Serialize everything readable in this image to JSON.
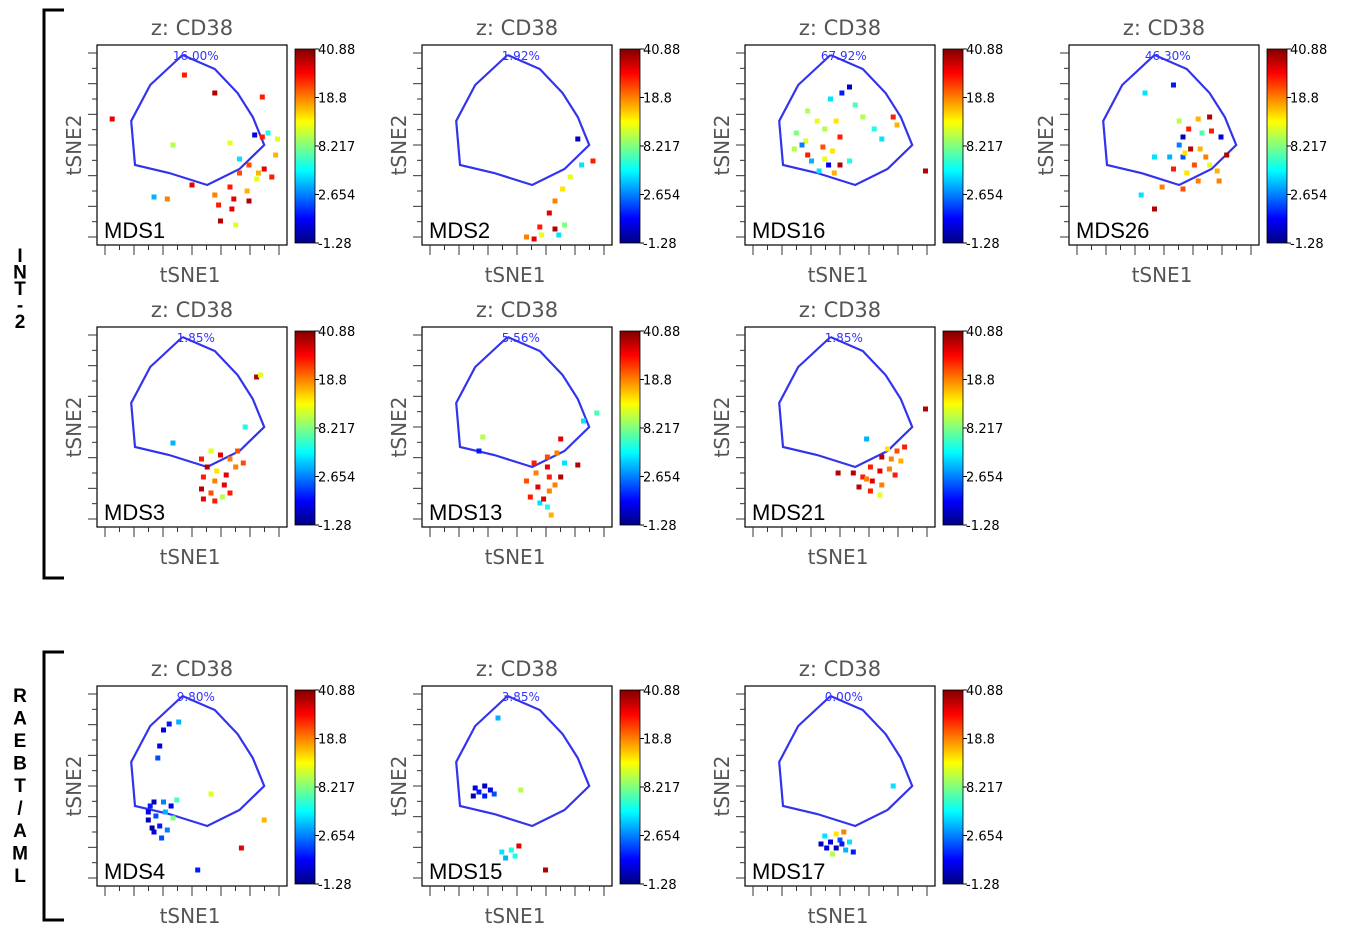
{
  "groups": [
    {
      "label_chars": [
        "I",
        "N",
        "T",
        "-",
        "2"
      ],
      "label": "INT-2"
    },
    {
      "label_chars": [
        "R",
        "A",
        "E",
        "B",
        "T",
        "/",
        "A",
        "M",
        "L"
      ],
      "label": "RAEBT/AML"
    }
  ],
  "colorbar": {
    "ticks": [
      "40.88",
      "18.8",
      "8.217",
      "2.654",
      "-1.28"
    ],
    "stops": [
      "#00007f",
      "#0000ff",
      "#0080ff",
      "#00ffff",
      "#80ff80",
      "#ffff00",
      "#ff8000",
      "#ff0000",
      "#7f0000"
    ]
  },
  "chart_data": [
    {
      "type": "scatter",
      "title": "z: CD38",
      "xlabel": "tSNE1",
      "ylabel": "tSNE2",
      "sample": "MDS1",
      "gate_percent": "16.00%",
      "group": "INT-2",
      "points": [
        [
          0.46,
          0.15,
          0.85
        ],
        [
          0.62,
          0.24,
          0.95
        ],
        [
          0.87,
          0.26,
          0.85
        ],
        [
          0.08,
          0.37,
          0.9
        ],
        [
          0.83,
          0.45,
          0.1
        ],
        [
          0.87,
          0.46,
          0.85
        ],
        [
          0.9,
          0.44,
          0.4
        ],
        [
          0.95,
          0.47,
          0.6
        ],
        [
          0.4,
          0.5,
          0.55
        ],
        [
          0.7,
          0.49,
          0.6
        ],
        [
          0.94,
          0.55,
          0.7
        ],
        [
          0.8,
          0.6,
          0.8
        ],
        [
          0.88,
          0.62,
          0.9
        ],
        [
          0.75,
          0.64,
          0.8
        ],
        [
          0.84,
          0.67,
          0.6
        ],
        [
          0.92,
          0.66,
          0.85
        ],
        [
          0.5,
          0.7,
          0.9
        ],
        [
          0.7,
          0.71,
          0.85
        ],
        [
          0.79,
          0.73,
          0.7
        ],
        [
          0.62,
          0.75,
          0.75
        ],
        [
          0.72,
          0.77,
          0.9
        ],
        [
          0.3,
          0.76,
          0.3
        ],
        [
          0.37,
          0.77,
          0.75
        ],
        [
          0.64,
          0.8,
          0.85
        ],
        [
          0.71,
          0.82,
          0.9
        ],
        [
          0.8,
          0.78,
          0.95
        ],
        [
          0.65,
          0.88,
          0.95
        ],
        [
          0.73,
          0.9,
          0.6
        ],
        [
          0.85,
          0.64,
          0.7
        ],
        [
          0.75,
          0.57,
          0.35
        ]
      ]
    },
    {
      "type": "scatter",
      "title": "z: CD38",
      "xlabel": "tSNE1",
      "ylabel": "tSNE2",
      "sample": "MDS2",
      "gate_percent": "1.92%",
      "group": "INT-2",
      "points": [
        [
          0.82,
          0.47,
          0.05
        ],
        [
          0.84,
          0.6,
          0.35
        ],
        [
          0.9,
          0.58,
          0.85
        ],
        [
          0.78,
          0.66,
          0.6
        ],
        [
          0.74,
          0.72,
          0.65
        ],
        [
          0.7,
          0.78,
          0.75
        ],
        [
          0.67,
          0.84,
          0.9
        ],
        [
          0.62,
          0.91,
          0.85
        ],
        [
          0.7,
          0.92,
          0.95
        ],
        [
          0.75,
          0.9,
          0.5
        ],
        [
          0.55,
          0.96,
          0.75
        ],
        [
          0.63,
          0.95,
          0.6
        ],
        [
          0.72,
          0.95,
          0.35
        ],
        [
          0.59,
          0.97,
          0.9
        ]
      ]
    },
    {
      "type": "scatter",
      "title": "z: CD38",
      "xlabel": "tSNE1",
      "ylabel": "tSNE2",
      "sample": "MDS16",
      "gate_percent": "67.92%",
      "group": "INT-2",
      "points": [
        [
          0.55,
          0.21,
          0.05
        ],
        [
          0.51,
          0.24,
          0.15
        ],
        [
          0.45,
          0.27,
          0.35
        ],
        [
          0.58,
          0.3,
          0.45
        ],
        [
          0.33,
          0.33,
          0.55
        ],
        [
          0.38,
          0.38,
          0.6
        ],
        [
          0.48,
          0.38,
          0.65
        ],
        [
          0.62,
          0.36,
          0.55
        ],
        [
          0.27,
          0.44,
          0.5
        ],
        [
          0.42,
          0.42,
          0.55
        ],
        [
          0.32,
          0.48,
          0.6
        ],
        [
          0.5,
          0.46,
          0.85
        ],
        [
          0.68,
          0.42,
          0.4
        ],
        [
          0.78,
          0.36,
          0.85
        ],
        [
          0.8,
          0.4,
          0.7
        ],
        [
          0.26,
          0.52,
          0.55
        ],
        [
          0.33,
          0.55,
          0.85
        ],
        [
          0.41,
          0.51,
          0.8
        ],
        [
          0.72,
          0.47,
          0.35
        ],
        [
          0.35,
          0.58,
          0.3
        ],
        [
          0.44,
          0.6,
          0.1
        ],
        [
          0.5,
          0.6,
          0.95
        ],
        [
          0.39,
          0.63,
          0.35
        ],
        [
          0.47,
          0.64,
          0.7
        ],
        [
          0.42,
          0.57,
          0.6
        ],
        [
          0.95,
          0.63,
          0.95
        ],
        [
          0.55,
          0.58,
          0.4
        ],
        [
          0.3,
          0.5,
          0.25
        ],
        [
          0.46,
          0.53,
          0.65
        ]
      ]
    },
    {
      "type": "scatter",
      "title": "z: CD38",
      "xlabel": "tSNE1",
      "ylabel": "tSNE2",
      "sample": "MDS26",
      "gate_percent": "46.30%",
      "group": "INT-2",
      "points": [
        [
          0.55,
          0.2,
          0.15
        ],
        [
          0.4,
          0.24,
          0.35
        ],
        [
          0.58,
          0.38,
          0.55
        ],
        [
          0.68,
          0.37,
          0.7
        ],
        [
          0.74,
          0.36,
          0.95
        ],
        [
          0.63,
          0.42,
          0.85
        ],
        [
          0.7,
          0.44,
          0.45
        ],
        [
          0.75,
          0.43,
          0.85
        ],
        [
          0.6,
          0.46,
          0.05
        ],
        [
          0.8,
          0.46,
          0.1
        ],
        [
          0.58,
          0.5,
          0.25
        ],
        [
          0.64,
          0.52,
          0.95
        ],
        [
          0.69,
          0.52,
          0.7
        ],
        [
          0.45,
          0.56,
          0.35
        ],
        [
          0.53,
          0.56,
          0.3
        ],
        [
          0.6,
          0.56,
          0.2
        ],
        [
          0.72,
          0.56,
          0.75
        ],
        [
          0.83,
          0.55,
          0.95
        ],
        [
          0.66,
          0.6,
          0.8
        ],
        [
          0.74,
          0.6,
          0.6
        ],
        [
          0.55,
          0.62,
          0.85
        ],
        [
          0.62,
          0.64,
          0.65
        ],
        [
          0.78,
          0.63,
          0.7
        ],
        [
          0.68,
          0.68,
          0.75
        ],
        [
          0.79,
          0.68,
          0.75
        ],
        [
          0.49,
          0.71,
          0.75
        ],
        [
          0.6,
          0.72,
          0.8
        ],
        [
          0.38,
          0.75,
          0.35
        ],
        [
          0.45,
          0.82,
          0.95
        ],
        [
          0.61,
          0.54,
          0.65
        ]
      ]
    },
    {
      "type": "scatter",
      "title": "z: CD38",
      "xlabel": "tSNE1",
      "ylabel": "tSNE2",
      "sample": "MDS3",
      "gate_percent": "1.85%",
      "group": "INT-2",
      "points": [
        [
          0.84,
          0.25,
          0.95
        ],
        [
          0.86,
          0.24,
          0.6
        ],
        [
          0.78,
          0.5,
          0.4
        ],
        [
          0.4,
          0.58,
          0.3
        ],
        [
          0.6,
          0.62,
          0.6
        ],
        [
          0.74,
          0.62,
          0.8
        ],
        [
          0.55,
          0.66,
          0.85
        ],
        [
          0.65,
          0.64,
          0.9
        ],
        [
          0.7,
          0.66,
          0.75
        ],
        [
          0.77,
          0.68,
          0.8
        ],
        [
          0.58,
          0.7,
          0.95
        ],
        [
          0.63,
          0.72,
          0.65
        ],
        [
          0.68,
          0.74,
          0.9
        ],
        [
          0.56,
          0.75,
          0.85
        ],
        [
          0.62,
          0.77,
          0.75
        ],
        [
          0.67,
          0.79,
          0.9
        ],
        [
          0.55,
          0.81,
          0.95
        ],
        [
          0.6,
          0.83,
          0.8
        ],
        [
          0.66,
          0.85,
          0.55
        ],
        [
          0.56,
          0.86,
          0.9
        ],
        [
          0.62,
          0.87,
          0.85
        ],
        [
          0.7,
          0.83,
          0.85
        ],
        [
          0.73,
          0.7,
          0.75
        ]
      ]
    },
    {
      "type": "scatter",
      "title": "z: CD38",
      "xlabel": "tSNE1",
      "ylabel": "tSNE2",
      "sample": "MDS13",
      "gate_percent": "5.56%",
      "group": "INT-2",
      "points": [
        [
          0.85,
          0.47,
          0.35
        ],
        [
          0.92,
          0.43,
          0.45
        ],
        [
          0.32,
          0.55,
          0.55
        ],
        [
          0.73,
          0.56,
          0.9
        ],
        [
          0.3,
          0.62,
          0.15
        ],
        [
          0.66,
          0.65,
          0.8
        ],
        [
          0.71,
          0.63,
          0.75
        ],
        [
          0.59,
          0.68,
          0.85
        ],
        [
          0.66,
          0.7,
          0.9
        ],
        [
          0.75,
          0.68,
          0.35
        ],
        [
          0.82,
          0.69,
          0.95
        ],
        [
          0.6,
          0.73,
          0.75
        ],
        [
          0.67,
          0.75,
          0.85
        ],
        [
          0.73,
          0.75,
          0.95
        ],
        [
          0.55,
          0.77,
          0.8
        ],
        [
          0.61,
          0.8,
          0.9
        ],
        [
          0.67,
          0.82,
          0.75
        ],
        [
          0.7,
          0.79,
          0.75
        ],
        [
          0.57,
          0.85,
          0.85
        ],
        [
          0.62,
          0.88,
          0.35
        ],
        [
          0.66,
          0.9,
          0.4
        ],
        [
          0.68,
          0.94,
          0.7
        ],
        [
          0.64,
          0.86,
          0.9
        ]
      ]
    },
    {
      "type": "scatter",
      "title": "z: CD38",
      "xlabel": "tSNE1",
      "ylabel": "tSNE2",
      "sample": "MDS21",
      "gate_percent": "1.85%",
      "group": "INT-2",
      "points": [
        [
          0.95,
          0.41,
          0.95
        ],
        [
          0.64,
          0.56,
          0.3
        ],
        [
          0.75,
          0.61,
          0.65
        ],
        [
          0.8,
          0.62,
          0.8
        ],
        [
          0.84,
          0.6,
          0.85
        ],
        [
          0.72,
          0.65,
          0.95
        ],
        [
          0.77,
          0.66,
          0.75
        ],
        [
          0.82,
          0.67,
          0.7
        ],
        [
          0.66,
          0.7,
          0.85
        ],
        [
          0.71,
          0.72,
          0.9
        ],
        [
          0.76,
          0.71,
          0.75
        ],
        [
          0.49,
          0.73,
          0.95
        ],
        [
          0.57,
          0.73,
          0.95
        ],
        [
          0.62,
          0.75,
          0.85
        ],
        [
          0.67,
          0.77,
          0.9
        ],
        [
          0.72,
          0.79,
          0.75
        ],
        [
          0.6,
          0.8,
          0.95
        ],
        [
          0.66,
          0.82,
          0.85
        ],
        [
          0.71,
          0.84,
          0.6
        ],
        [
          0.79,
          0.74,
          0.85
        ],
        [
          0.64,
          0.76,
          0.75
        ]
      ]
    },
    {
      "type": "scatter",
      "title": "z: CD38",
      "xlabel": "tSNE1",
      "ylabel": "tSNE2",
      "sample": "MDS4",
      "gate_percent": "9.80%",
      "group": "RAEBT/AML",
      "points": [
        [
          0.43,
          0.18,
          0.3
        ],
        [
          0.38,
          0.19,
          0.15
        ],
        [
          0.35,
          0.22,
          0.1
        ],
        [
          0.33,
          0.3,
          0.1
        ],
        [
          0.32,
          0.36,
          0.2
        ],
        [
          0.42,
          0.57,
          0.45
        ],
        [
          0.3,
          0.58,
          0.05
        ],
        [
          0.28,
          0.6,
          0.15
        ],
        [
          0.35,
          0.58,
          0.25
        ],
        [
          0.39,
          0.6,
          0.1
        ],
        [
          0.27,
          0.63,
          0.1
        ],
        [
          0.31,
          0.65,
          0.2
        ],
        [
          0.36,
          0.63,
          0.3
        ],
        [
          0.27,
          0.67,
          0.05
        ],
        [
          0.33,
          0.7,
          0.15
        ],
        [
          0.4,
          0.66,
          0.5
        ],
        [
          0.29,
          0.71,
          0.0
        ],
        [
          0.37,
          0.72,
          0.25
        ],
        [
          0.34,
          0.76,
          0.2
        ],
        [
          0.6,
          0.54,
          0.6
        ],
        [
          0.88,
          0.67,
          0.7
        ],
        [
          0.76,
          0.81,
          0.9
        ],
        [
          0.53,
          0.92,
          0.15
        ],
        [
          0.3,
          0.73,
          0.1
        ]
      ]
    },
    {
      "type": "scatter",
      "title": "z: CD38",
      "xlabel": "tSNE1",
      "ylabel": "tSNE2",
      "sample": "MDS15",
      "gate_percent": "3.85%",
      "group": "RAEBT/AML",
      "points": [
        [
          0.4,
          0.16,
          0.3
        ],
        [
          0.28,
          0.51,
          0.1
        ],
        [
          0.33,
          0.5,
          0.05
        ],
        [
          0.3,
          0.53,
          0.15
        ],
        [
          0.36,
          0.52,
          0.1
        ],
        [
          0.27,
          0.55,
          0.05
        ],
        [
          0.33,
          0.55,
          0.15
        ],
        [
          0.38,
          0.54,
          0.2
        ],
        [
          0.52,
          0.52,
          0.55
        ],
        [
          0.42,
          0.83,
          0.35
        ],
        [
          0.47,
          0.82,
          0.4
        ],
        [
          0.44,
          0.86,
          0.3
        ],
        [
          0.51,
          0.8,
          0.9
        ],
        [
          0.65,
          0.92,
          0.95
        ],
        [
          0.49,
          0.85,
          0.4
        ]
      ]
    },
    {
      "type": "scatter",
      "title": "z: CD38",
      "xlabel": "tSNE1",
      "ylabel": "tSNE2",
      "sample": "MDS17",
      "gate_percent": "0.00%",
      "group": "RAEBT/AML",
      "points": [
        [
          0.78,
          0.5,
          0.35
        ],
        [
          0.42,
          0.75,
          0.35
        ],
        [
          0.48,
          0.74,
          0.65
        ],
        [
          0.52,
          0.73,
          0.75
        ],
        [
          0.4,
          0.79,
          0.05
        ],
        [
          0.45,
          0.78,
          0.1
        ],
        [
          0.5,
          0.77,
          0.2
        ],
        [
          0.55,
          0.78,
          0.35
        ],
        [
          0.43,
          0.81,
          0.1
        ],
        [
          0.48,
          0.81,
          0.05
        ],
        [
          0.53,
          0.82,
          0.3
        ],
        [
          0.57,
          0.83,
          0.15
        ],
        [
          0.46,
          0.84,
          0.55
        ],
        [
          0.51,
          0.79,
          0.15
        ]
      ]
    }
  ]
}
